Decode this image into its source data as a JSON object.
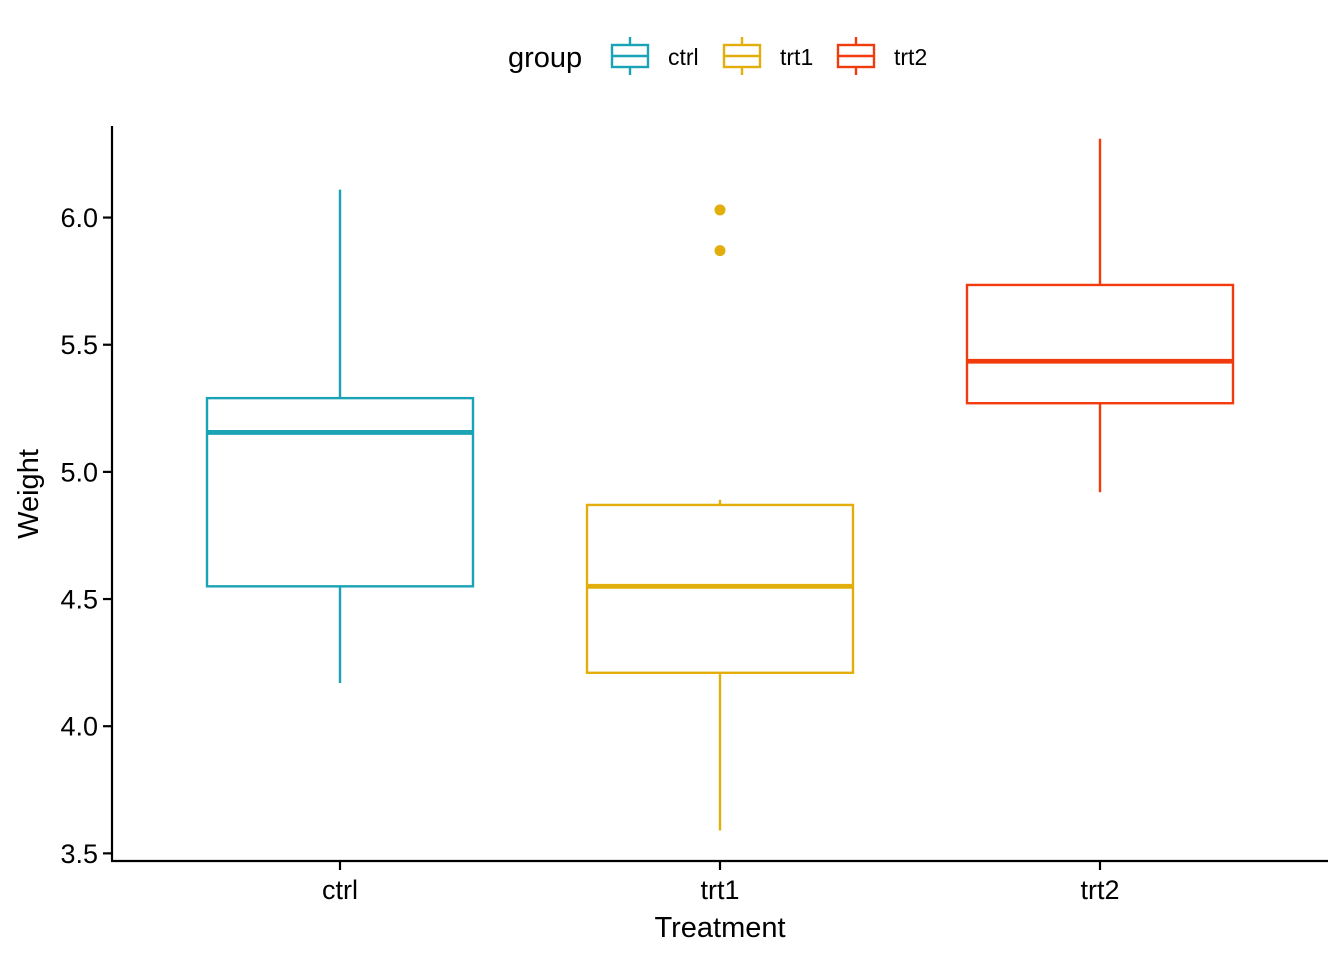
{
  "chart_data": {
    "type": "boxplot",
    "xlabel": "Treatment",
    "ylabel": "Weight",
    "ylim": [
      3.47,
      6.36
    ],
    "yticks": [
      3.5,
      4.0,
      4.5,
      5.0,
      5.5,
      6.0
    ],
    "ytick_labels": [
      "3.5",
      "4.0",
      "4.5",
      "5.0",
      "5.5",
      "6.0"
    ],
    "categories": [
      "ctrl",
      "trt1",
      "trt2"
    ],
    "grid": false,
    "legend": {
      "title": "group",
      "position": "top",
      "entries": [
        "ctrl",
        "trt1",
        "trt2"
      ]
    },
    "series": [
      {
        "name": "ctrl",
        "color": "#1AA3B5",
        "whisker_low": 4.17,
        "q1": 4.55,
        "median": 5.155,
        "q3": 5.29,
        "whisker_high": 6.11,
        "outliers": []
      },
      {
        "name": "trt1",
        "color": "#E2AE0C",
        "whisker_low": 3.59,
        "q1": 4.21,
        "median": 4.55,
        "q3": 4.87,
        "whisker_high": 4.89,
        "outliers": [
          5.87,
          6.03
        ]
      },
      {
        "name": "trt2",
        "color": "#F23B0D",
        "whisker_low": 4.92,
        "q1": 5.27,
        "median": 5.435,
        "q3": 5.735,
        "whisker_high": 6.31,
        "outliers": []
      }
    ]
  }
}
